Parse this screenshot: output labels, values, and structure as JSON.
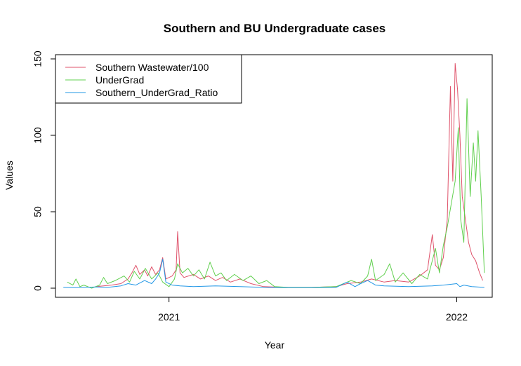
{
  "chart_data": {
    "type": "line",
    "title": "Southern and BU Undergraduate cases",
    "xlabel": "Year",
    "ylabel": "Values",
    "xlim": [
      "2020-08-10",
      "2022-02-15"
    ],
    "ylim": [
      0,
      150
    ],
    "x_ticks": [
      {
        "date": "2021-01-01",
        "label": "2021"
      },
      {
        "date": "2022-01-01",
        "label": "2022"
      }
    ],
    "y_ticks": [
      0,
      50,
      100,
      150
    ],
    "grid": false,
    "legend_position": "top-left",
    "series": [
      {
        "name": "Southern Wastewater/100",
        "color": "#DF536B",
        "points": [
          [
            "2020-10-01",
            1
          ],
          [
            "2020-10-20",
            2
          ],
          [
            "2020-11-01",
            3
          ],
          [
            "2020-11-10",
            6
          ],
          [
            "2020-11-15",
            10
          ],
          [
            "2020-11-20",
            15
          ],
          [
            "2020-11-25",
            9
          ],
          [
            "2020-12-01",
            12
          ],
          [
            "2020-12-05",
            8
          ],
          [
            "2020-12-10",
            14
          ],
          [
            "2020-12-15",
            9
          ],
          [
            "2020-12-20",
            12
          ],
          [
            "2020-12-24",
            20
          ],
          [
            "2020-12-28",
            6
          ],
          [
            "2021-01-05",
            8
          ],
          [
            "2021-01-10",
            12
          ],
          [
            "2021-01-12",
            37
          ],
          [
            "2021-01-15",
            10
          ],
          [
            "2021-01-20",
            7
          ],
          [
            "2021-02-01",
            9
          ],
          [
            "2021-02-10",
            6
          ],
          [
            "2021-02-20",
            8
          ],
          [
            "2021-03-01",
            5
          ],
          [
            "2021-03-10",
            7
          ],
          [
            "2021-03-20",
            4
          ],
          [
            "2021-04-01",
            6
          ],
          [
            "2021-04-15",
            3
          ],
          [
            "2021-05-01",
            1
          ],
          [
            "2021-06-01",
            0.5
          ],
          [
            "2021-07-01",
            0.5
          ],
          [
            "2021-08-01",
            1
          ],
          [
            "2021-08-15",
            3
          ],
          [
            "2021-09-01",
            4
          ],
          [
            "2021-09-15",
            6
          ],
          [
            "2021-10-01",
            4
          ],
          [
            "2021-10-15",
            5
          ],
          [
            "2021-11-01",
            4
          ],
          [
            "2021-11-15",
            8
          ],
          [
            "2021-11-25",
            12
          ],
          [
            "2021-12-01",
            35
          ],
          [
            "2021-12-05",
            15
          ],
          [
            "2021-12-10",
            12
          ],
          [
            "2021-12-15",
            20
          ],
          [
            "2021-12-20",
            45
          ],
          [
            "2021-12-24",
            132
          ],
          [
            "2021-12-27",
            70
          ],
          [
            "2021-12-30",
            147
          ],
          [
            "2022-01-02",
            130
          ],
          [
            "2022-01-05",
            100
          ],
          [
            "2022-01-08",
            60
          ],
          [
            "2022-01-12",
            45
          ],
          [
            "2022-01-16",
            30
          ],
          [
            "2022-01-20",
            22
          ],
          [
            "2022-01-25",
            18
          ],
          [
            "2022-01-30",
            10
          ],
          [
            "2022-02-03",
            5
          ]
        ]
      },
      {
        "name": "UnderGrad",
        "color": "#61D04F",
        "points": [
          [
            "2020-08-25",
            4
          ],
          [
            "2020-09-01",
            2
          ],
          [
            "2020-09-05",
            6
          ],
          [
            "2020-09-10",
            1
          ],
          [
            "2020-09-15",
            2
          ],
          [
            "2020-09-25",
            0
          ],
          [
            "2020-10-05",
            2
          ],
          [
            "2020-10-10",
            7
          ],
          [
            "2020-10-15",
            3
          ],
          [
            "2020-10-25",
            5
          ],
          [
            "2020-11-05",
            8
          ],
          [
            "2020-11-12",
            4
          ],
          [
            "2020-11-18",
            11
          ],
          [
            "2020-11-25",
            6
          ],
          [
            "2020-12-02",
            13
          ],
          [
            "2020-12-10",
            6
          ],
          [
            "2020-12-18",
            10
          ],
          [
            "2020-12-24",
            4
          ],
          [
            "2021-01-01",
            1
          ],
          [
            "2021-01-08",
            6
          ],
          [
            "2021-01-12",
            16
          ],
          [
            "2021-01-18",
            10
          ],
          [
            "2021-01-25",
            13
          ],
          [
            "2021-02-01",
            8
          ],
          [
            "2021-02-08",
            12
          ],
          [
            "2021-02-15",
            6
          ],
          [
            "2021-02-22",
            17
          ],
          [
            "2021-03-01",
            8
          ],
          [
            "2021-03-08",
            10
          ],
          [
            "2021-03-15",
            5
          ],
          [
            "2021-03-25",
            9
          ],
          [
            "2021-04-05",
            5
          ],
          [
            "2021-04-15",
            8
          ],
          [
            "2021-04-25",
            3
          ],
          [
            "2021-05-05",
            5
          ],
          [
            "2021-05-15",
            1
          ],
          [
            "2021-06-01",
            0.5
          ],
          [
            "2021-07-01",
            0.5
          ],
          [
            "2021-08-01",
            1
          ],
          [
            "2021-08-20",
            5
          ],
          [
            "2021-09-01",
            3
          ],
          [
            "2021-09-10",
            8
          ],
          [
            "2021-09-15",
            19
          ],
          [
            "2021-09-20",
            5
          ],
          [
            "2021-10-01",
            9
          ],
          [
            "2021-10-08",
            16
          ],
          [
            "2021-10-15",
            4
          ],
          [
            "2021-10-25",
            10
          ],
          [
            "2021-11-05",
            3
          ],
          [
            "2021-11-15",
            9
          ],
          [
            "2021-11-25",
            6
          ],
          [
            "2021-12-05",
            26
          ],
          [
            "2021-12-10",
            10
          ],
          [
            "2021-12-15",
            28
          ],
          [
            "2021-12-20",
            40
          ],
          [
            "2021-12-25",
            55
          ],
          [
            "2021-12-30",
            70
          ],
          [
            "2022-01-03",
            105
          ],
          [
            "2022-01-06",
            45
          ],
          [
            "2022-01-10",
            30
          ],
          [
            "2022-01-14",
            124
          ],
          [
            "2022-01-18",
            60
          ],
          [
            "2022-01-22",
            95
          ],
          [
            "2022-01-25",
            70
          ],
          [
            "2022-01-28",
            103
          ],
          [
            "2022-02-01",
            60
          ],
          [
            "2022-02-05",
            10
          ]
        ]
      },
      {
        "name": "Southern_UnderGrad_Ratio",
        "color": "#2297E6",
        "points": [
          [
            "2020-08-20",
            0.5
          ],
          [
            "2020-09-01",
            0.3
          ],
          [
            "2020-09-15",
            0.5
          ],
          [
            "2020-10-01",
            0.8
          ],
          [
            "2020-10-15",
            0.5
          ],
          [
            "2020-11-01",
            1.5
          ],
          [
            "2020-11-10",
            3
          ],
          [
            "2020-11-20",
            2
          ],
          [
            "2020-12-01",
            5
          ],
          [
            "2020-12-10",
            3
          ],
          [
            "2020-12-15",
            6
          ],
          [
            "2020-12-20",
            10
          ],
          [
            "2020-12-24",
            19
          ],
          [
            "2020-12-28",
            4
          ],
          [
            "2021-01-05",
            2
          ],
          [
            "2021-01-15",
            1.5
          ],
          [
            "2021-02-01",
            1
          ],
          [
            "2021-03-01",
            1.5
          ],
          [
            "2021-04-01",
            1
          ],
          [
            "2021-05-01",
            0.5
          ],
          [
            "2021-06-01",
            0.3
          ],
          [
            "2021-07-01",
            0.3
          ],
          [
            "2021-08-01",
            0.5
          ],
          [
            "2021-08-15",
            4
          ],
          [
            "2021-08-25",
            1
          ],
          [
            "2021-09-01",
            3
          ],
          [
            "2021-09-10",
            5
          ],
          [
            "2021-09-20",
            2
          ],
          [
            "2021-10-01",
            1.5
          ],
          [
            "2021-11-01",
            1
          ],
          [
            "2021-12-01",
            1.5
          ],
          [
            "2021-12-15",
            2
          ],
          [
            "2022-01-01",
            3
          ],
          [
            "2022-01-05",
            1
          ],
          [
            "2022-01-10",
            2
          ],
          [
            "2022-01-20",
            1
          ],
          [
            "2022-02-05",
            0.5
          ]
        ]
      }
    ]
  }
}
